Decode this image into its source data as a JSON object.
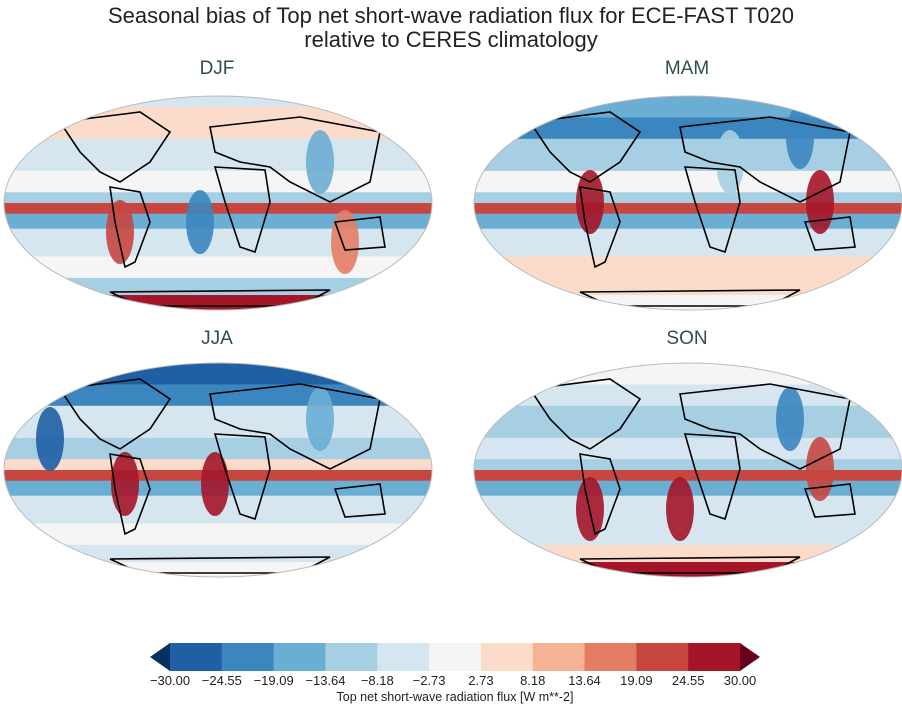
{
  "figure": {
    "title_line1": "Seasonal bias of Top net short-wave radiation flux for ECE-FAST T020",
    "title_line2": "relative to CERES climatology"
  },
  "panels": [
    {
      "label": "DJF"
    },
    {
      "label": "MAM"
    },
    {
      "label": "JJA"
    },
    {
      "label": "SON"
    }
  ],
  "colorbar": {
    "label": "Top net short-wave radiation flux [W m**-2]",
    "ticks": [
      "−30.00",
      "−24.55",
      "−19.09",
      "−13.64",
      "−8.18",
      "−2.73",
      "2.73",
      "8.18",
      "13.64",
      "19.09",
      "24.55",
      "30.00"
    ],
    "colors": [
      "#1f5fa4",
      "#3b86bf",
      "#6aaed3",
      "#a7cfe4",
      "#d6e6f0",
      "#f5f5f5",
      "#fbdcca",
      "#f6b294",
      "#e57d64",
      "#c74640",
      "#a51529"
    ],
    "under_color": "#053061",
    "over_color": "#67001f",
    "extend": "both"
  }
}
